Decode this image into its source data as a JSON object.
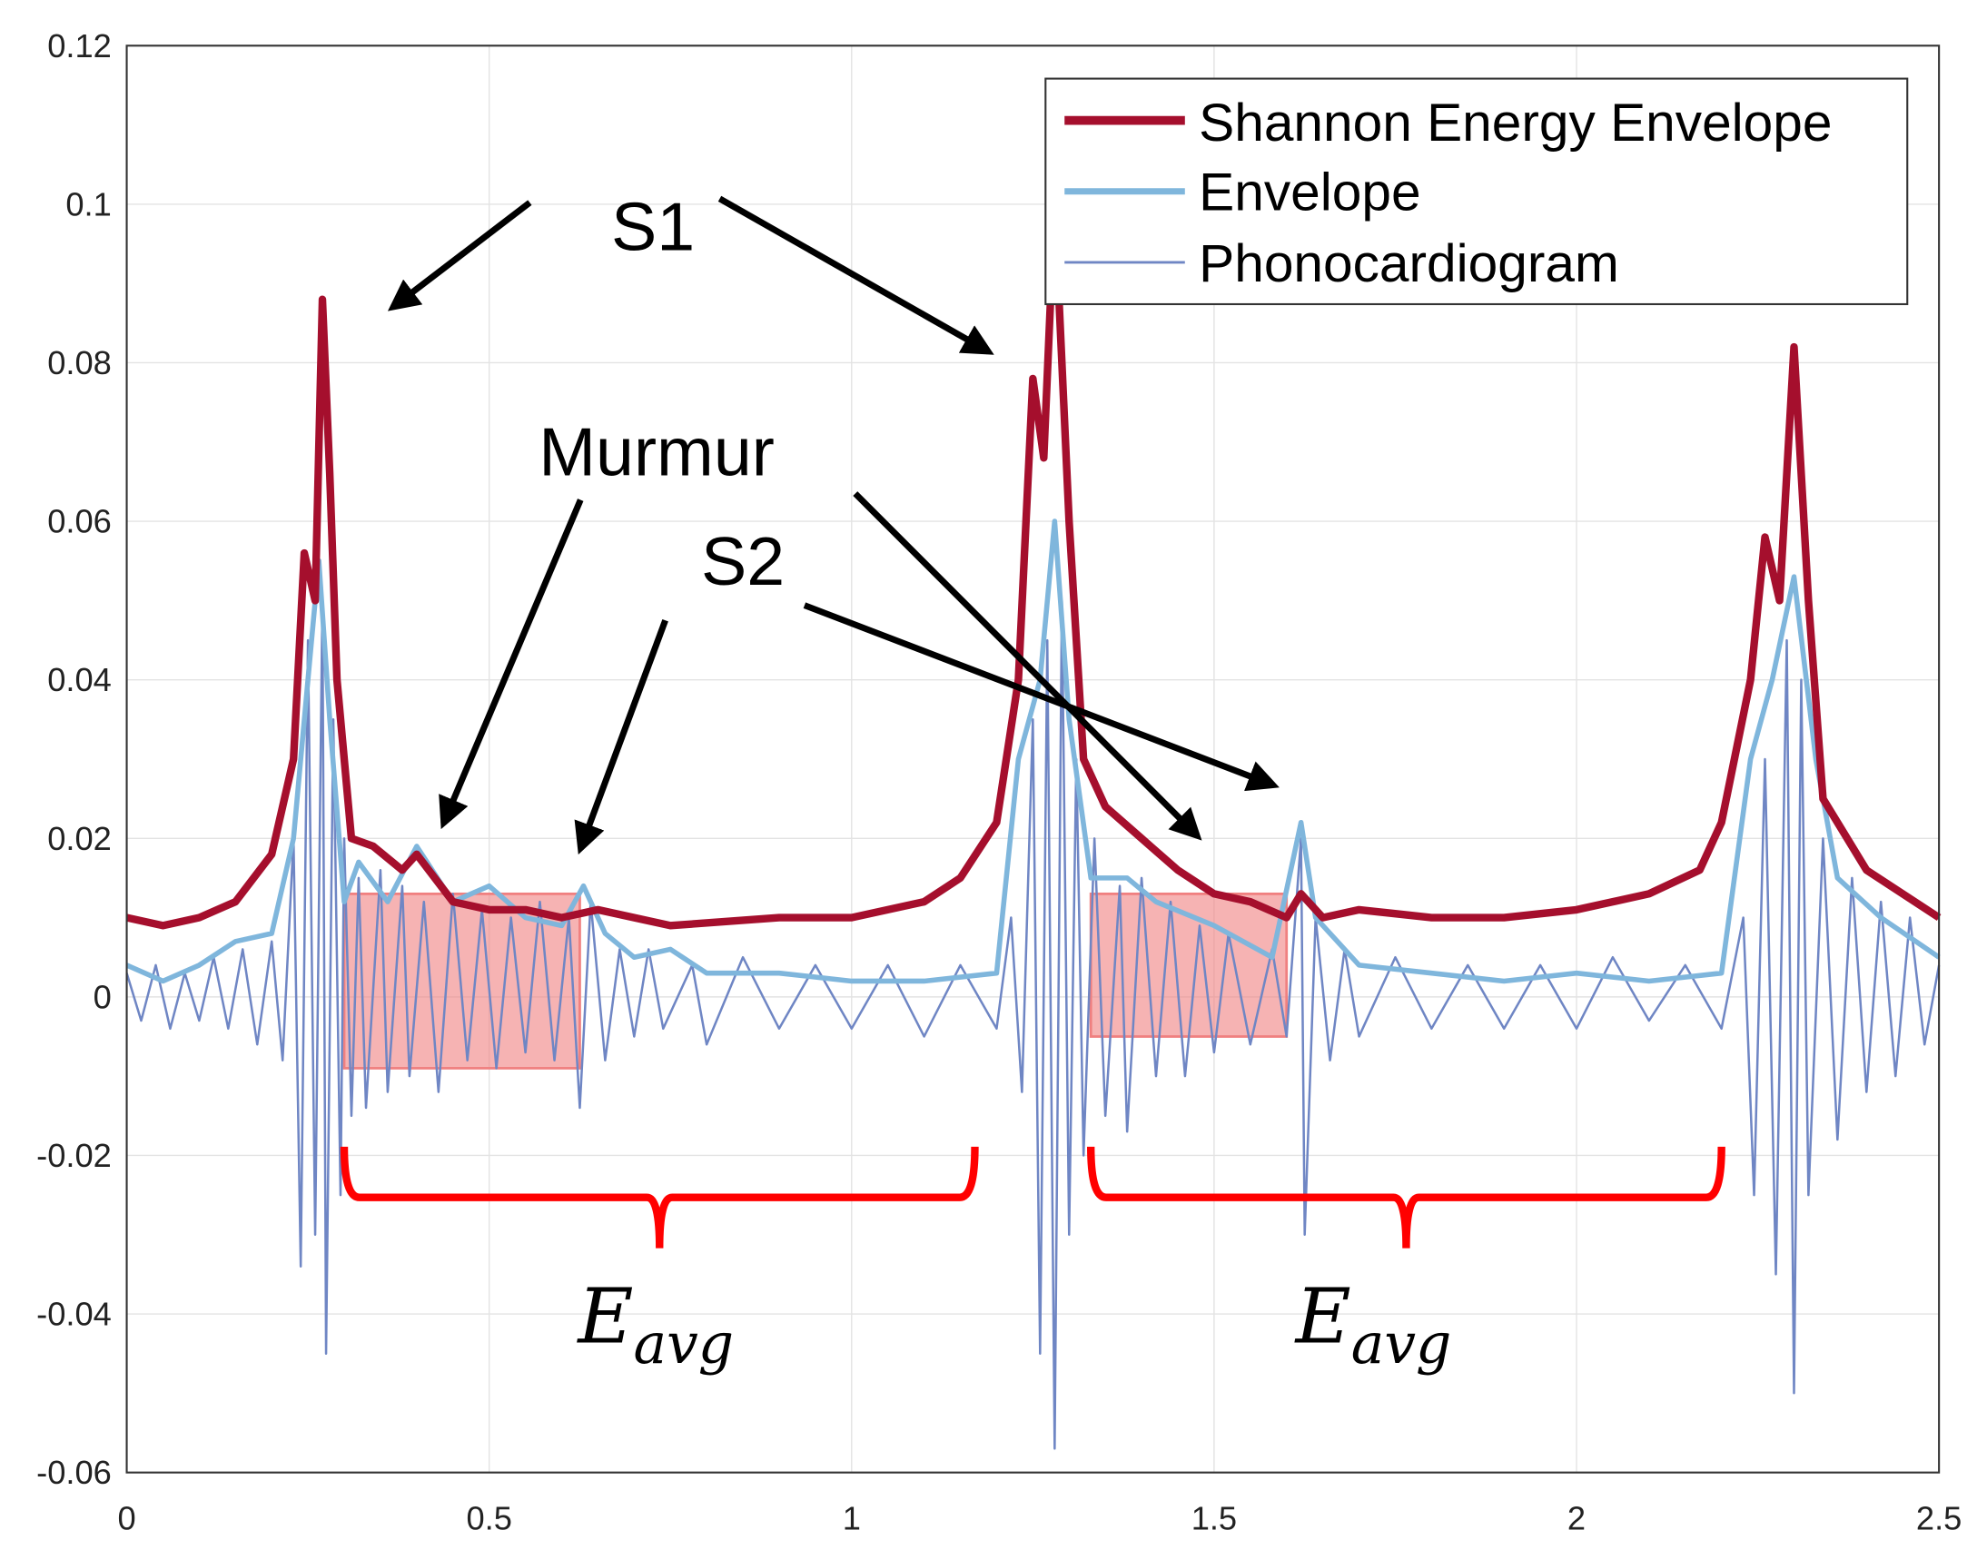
{
  "chart_data": {
    "type": "line",
    "title": "",
    "xlabel": "",
    "ylabel": "",
    "xlim": [
      0,
      2.5
    ],
    "ylim": [
      -0.06,
      0.12
    ],
    "grid": true,
    "legend_position": "top-right",
    "x_ticks": [
      "0",
      "0.5",
      "1",
      "1.5",
      "2",
      "2.5"
    ],
    "x_tick_values": [
      0,
      0.5,
      1,
      1.5,
      2,
      2.5
    ],
    "y_ticks": [
      "-0.06",
      "-0.04",
      "-0.02",
      "0",
      "0.02",
      "0.04",
      "0.06",
      "0.08",
      "0.1",
      "0.12"
    ],
    "y_tick_values": [
      -0.06,
      -0.04,
      -0.02,
      0,
      0.02,
      0.04,
      0.06,
      0.08,
      0.1,
      0.12
    ],
    "series": [
      {
        "name": "Phonocardiogram",
        "color": "#6f86c4",
        "points": [
          [
            0,
            0.003
          ],
          [
            0.02,
            -0.003
          ],
          [
            0.04,
            0.004
          ],
          [
            0.06,
            -0.004
          ],
          [
            0.08,
            0.003
          ],
          [
            0.1,
            -0.003
          ],
          [
            0.12,
            0.005
          ],
          [
            0.14,
            -0.004
          ],
          [
            0.16,
            0.006
          ],
          [
            0.18,
            -0.006
          ],
          [
            0.2,
            0.007
          ],
          [
            0.215,
            -0.008
          ],
          [
            0.23,
            0.02
          ],
          [
            0.24,
            -0.034
          ],
          [
            0.25,
            0.045
          ],
          [
            0.26,
            -0.03
          ],
          [
            0.27,
            0.05
          ],
          [
            0.275,
            -0.045
          ],
          [
            0.285,
            0.035
          ],
          [
            0.295,
            -0.025
          ],
          [
            0.3,
            0.02
          ],
          [
            0.31,
            -0.015
          ],
          [
            0.32,
            0.015
          ],
          [
            0.33,
            -0.014
          ],
          [
            0.35,
            0.016
          ],
          [
            0.36,
            -0.012
          ],
          [
            0.38,
            0.014
          ],
          [
            0.39,
            -0.01
          ],
          [
            0.41,
            0.012
          ],
          [
            0.43,
            -0.012
          ],
          [
            0.45,
            0.013
          ],
          [
            0.47,
            -0.008
          ],
          [
            0.49,
            0.011
          ],
          [
            0.51,
            -0.009
          ],
          [
            0.53,
            0.01
          ],
          [
            0.55,
            -0.007
          ],
          [
            0.57,
            0.012
          ],
          [
            0.59,
            -0.008
          ],
          [
            0.61,
            0.01
          ],
          [
            0.625,
            -0.014
          ],
          [
            0.64,
            0.012
          ],
          [
            0.66,
            -0.008
          ],
          [
            0.68,
            0.006
          ],
          [
            0.7,
            -0.005
          ],
          [
            0.72,
            0.006
          ],
          [
            0.74,
            -0.004
          ],
          [
            0.78,
            0.004
          ],
          [
            0.8,
            -0.006
          ],
          [
            0.85,
            0.005
          ],
          [
            0.9,
            -0.004
          ],
          [
            0.95,
            0.004
          ],
          [
            1.0,
            -0.004
          ],
          [
            1.05,
            0.004
          ],
          [
            1.1,
            -0.005
          ],
          [
            1.15,
            0.004
          ],
          [
            1.2,
            -0.004
          ],
          [
            1.22,
            0.01
          ],
          [
            1.235,
            -0.012
          ],
          [
            1.25,
            0.035
          ],
          [
            1.26,
            -0.045
          ],
          [
            1.27,
            0.045
          ],
          [
            1.28,
            -0.057
          ],
          [
            1.29,
            0.05
          ],
          [
            1.3,
            -0.03
          ],
          [
            1.31,
            0.03
          ],
          [
            1.32,
            -0.02
          ],
          [
            1.335,
            0.02
          ],
          [
            1.35,
            -0.015
          ],
          [
            1.37,
            0.014
          ],
          [
            1.38,
            -0.017
          ],
          [
            1.4,
            0.015
          ],
          [
            1.42,
            -0.01
          ],
          [
            1.44,
            0.012
          ],
          [
            1.46,
            -0.01
          ],
          [
            1.48,
            0.009
          ],
          [
            1.5,
            -0.007
          ],
          [
            1.52,
            0.008
          ],
          [
            1.55,
            -0.006
          ],
          [
            1.58,
            0.006
          ],
          [
            1.6,
            -0.005
          ],
          [
            1.62,
            0.02
          ],
          [
            1.625,
            -0.03
          ],
          [
            1.64,
            0.01
          ],
          [
            1.66,
            -0.008
          ],
          [
            1.68,
            0.006
          ],
          [
            1.7,
            -0.005
          ],
          [
            1.75,
            0.005
          ],
          [
            1.8,
            -0.004
          ],
          [
            1.85,
            0.004
          ],
          [
            1.9,
            -0.004
          ],
          [
            1.95,
            0.004
          ],
          [
            2.0,
            -0.004
          ],
          [
            2.05,
            0.005
          ],
          [
            2.1,
            -0.003
          ],
          [
            2.15,
            0.004
          ],
          [
            2.2,
            -0.004
          ],
          [
            2.23,
            0.01
          ],
          [
            2.245,
            -0.025
          ],
          [
            2.26,
            0.03
          ],
          [
            2.275,
            -0.035
          ],
          [
            2.29,
            0.045
          ],
          [
            2.3,
            -0.05
          ],
          [
            2.31,
            0.04
          ],
          [
            2.32,
            -0.025
          ],
          [
            2.34,
            0.02
          ],
          [
            2.36,
            -0.018
          ],
          [
            2.38,
            0.015
          ],
          [
            2.4,
            -0.012
          ],
          [
            2.42,
            0.012
          ],
          [
            2.44,
            -0.01
          ],
          [
            2.46,
            0.01
          ],
          [
            2.48,
            -0.006
          ],
          [
            2.5,
            0.004
          ]
        ]
      },
      {
        "name": "Envelope",
        "color": "#7fb6dc",
        "points": [
          [
            0,
            0.004
          ],
          [
            0.05,
            0.002
          ],
          [
            0.1,
            0.004
          ],
          [
            0.15,
            0.007
          ],
          [
            0.2,
            0.008
          ],
          [
            0.23,
            0.02
          ],
          [
            0.25,
            0.04
          ],
          [
            0.265,
            0.055
          ],
          [
            0.28,
            0.035
          ],
          [
            0.3,
            0.012
          ],
          [
            0.32,
            0.017
          ],
          [
            0.36,
            0.012
          ],
          [
            0.4,
            0.019
          ],
          [
            0.45,
            0.012
          ],
          [
            0.5,
            0.014
          ],
          [
            0.55,
            0.01
          ],
          [
            0.6,
            0.009
          ],
          [
            0.63,
            0.014
          ],
          [
            0.66,
            0.008
          ],
          [
            0.7,
            0.005
          ],
          [
            0.75,
            0.006
          ],
          [
            0.8,
            0.003
          ],
          [
            0.9,
            0.003
          ],
          [
            1.0,
            0.002
          ],
          [
            1.1,
            0.002
          ],
          [
            1.2,
            0.003
          ],
          [
            1.23,
            0.03
          ],
          [
            1.26,
            0.04
          ],
          [
            1.28,
            0.06
          ],
          [
            1.3,
            0.035
          ],
          [
            1.33,
            0.015
          ],
          [
            1.38,
            0.015
          ],
          [
            1.42,
            0.012
          ],
          [
            1.5,
            0.009
          ],
          [
            1.58,
            0.005
          ],
          [
            1.62,
            0.022
          ],
          [
            1.64,
            0.01
          ],
          [
            1.7,
            0.004
          ],
          [
            1.8,
            0.003
          ],
          [
            1.9,
            0.002
          ],
          [
            2.0,
            0.003
          ],
          [
            2.1,
            0.002
          ],
          [
            2.2,
            0.003
          ],
          [
            2.24,
            0.03
          ],
          [
            2.27,
            0.04
          ],
          [
            2.3,
            0.053
          ],
          [
            2.33,
            0.03
          ],
          [
            2.36,
            0.015
          ],
          [
            2.42,
            0.01
          ],
          [
            2.5,
            0.005
          ]
        ]
      },
      {
        "name": "Shannon Energy Envelope",
        "color": "#a50f2d",
        "points": [
          [
            0,
            0.01
          ],
          [
            0.05,
            0.009
          ],
          [
            0.1,
            0.01
          ],
          [
            0.15,
            0.012
          ],
          [
            0.2,
            0.018
          ],
          [
            0.23,
            0.03
          ],
          [
            0.245,
            0.056
          ],
          [
            0.26,
            0.05
          ],
          [
            0.27,
            0.088
          ],
          [
            0.28,
            0.066
          ],
          [
            0.29,
            0.04
          ],
          [
            0.31,
            0.02
          ],
          [
            0.34,
            0.019
          ],
          [
            0.38,
            0.016
          ],
          [
            0.4,
            0.018
          ],
          [
            0.45,
            0.012
          ],
          [
            0.5,
            0.011
          ],
          [
            0.55,
            0.011
          ],
          [
            0.6,
            0.01
          ],
          [
            0.65,
            0.011
          ],
          [
            0.75,
            0.009
          ],
          [
            0.9,
            0.01
          ],
          [
            1.0,
            0.01
          ],
          [
            1.1,
            0.012
          ],
          [
            1.15,
            0.015
          ],
          [
            1.2,
            0.022
          ],
          [
            1.23,
            0.04
          ],
          [
            1.25,
            0.078
          ],
          [
            1.265,
            0.068
          ],
          [
            1.28,
            0.1
          ],
          [
            1.3,
            0.06
          ],
          [
            1.32,
            0.03
          ],
          [
            1.35,
            0.024
          ],
          [
            1.4,
            0.02
          ],
          [
            1.45,
            0.016
          ],
          [
            1.5,
            0.013
          ],
          [
            1.55,
            0.012
          ],
          [
            1.6,
            0.01
          ],
          [
            1.62,
            0.013
          ],
          [
            1.65,
            0.01
          ],
          [
            1.7,
            0.011
          ],
          [
            1.8,
            0.01
          ],
          [
            1.9,
            0.01
          ],
          [
            2.0,
            0.011
          ],
          [
            2.1,
            0.013
          ],
          [
            2.17,
            0.016
          ],
          [
            2.2,
            0.022
          ],
          [
            2.24,
            0.04
          ],
          [
            2.26,
            0.058
          ],
          [
            2.28,
            0.05
          ],
          [
            2.3,
            0.082
          ],
          [
            2.32,
            0.05
          ],
          [
            2.34,
            0.025
          ],
          [
            2.4,
            0.016
          ],
          [
            2.45,
            0.013
          ],
          [
            2.5,
            0.01
          ]
        ]
      }
    ],
    "legend": [
      "Shannon Energy Envelope",
      "Envelope",
      "Phonocardiogram"
    ],
    "annotations": {
      "s1": {
        "text": "S1",
        "x": 0.726,
        "y": 0.0974,
        "arrows": [
          [
            [
              0.556,
              0.1002
            ],
            [
              0.367,
              0.087
            ]
          ],
          [
            [
              0.818,
              0.1007
            ],
            [
              1.189,
              0.0814
            ]
          ]
        ]
      },
      "murmur": {
        "text": "Murmur",
        "x": 0.731,
        "y": 0.069,
        "arrows": [
          [
            [
              0.626,
              0.0627
            ],
            [
              0.437,
              0.0219
            ]
          ],
          [
            [
              1.005,
              0.0635
            ],
            [
              1.477,
              0.0203
            ]
          ]
        ]
      },
      "s2": {
        "text": "S2",
        "x": 0.85,
        "y": 0.0552,
        "arrows": [
          [
            [
              0.743,
              0.0475
            ],
            [
              0.626,
              0.0187
            ]
          ],
          [
            [
              0.935,
              0.0494
            ],
            [
              1.582,
              0.0267
            ]
          ]
        ]
      },
      "highlight_color": "#f08080",
      "highlights": [
        {
          "x": [
            0.3,
            0.625
          ],
          "y": [
            -0.009,
            0.013
          ]
        },
        {
          "x": [
            1.33,
            1.6
          ],
          "y": [
            -0.005,
            0.013
          ]
        }
      ],
      "brace_color": "#ff0000",
      "braces": [
        {
          "x": [
            0.3,
            1.17
          ],
          "y_top": -0.0189,
          "y_bar": -0.0253,
          "y_tip": -0.0317
        },
        {
          "x": [
            1.33,
            2.2
          ],
          "y_top": -0.0189,
          "y_bar": -0.0253,
          "y_tip": -0.0317
        }
      ],
      "eavg": [
        {
          "base": "E",
          "sub": "avg",
          "x": 0.73,
          "y": -0.0412
        },
        {
          "base": "E",
          "sub": "avg",
          "x": 1.72,
          "y": -0.0412
        }
      ]
    }
  }
}
